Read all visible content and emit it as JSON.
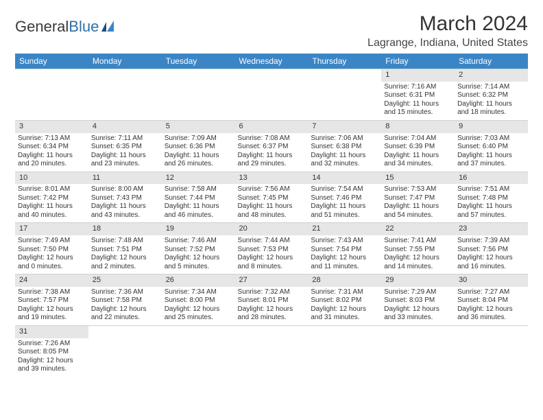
{
  "logo": {
    "text1": "General",
    "text2": "Blue"
  },
  "title": "March 2024",
  "location": "Lagrange, Indiana, United States",
  "weekdays": [
    "Sunday",
    "Monday",
    "Tuesday",
    "Wednesday",
    "Thursday",
    "Friday",
    "Saturday"
  ],
  "colors": {
    "header_bg": "#3a85c6",
    "header_text": "#ffffff",
    "daynum_bg": "#e6e6e6",
    "row_divider": "#3a85c6",
    "logo_dark": "#3a3a3a",
    "logo_blue": "#2f6fa8"
  },
  "weeks": [
    [
      null,
      null,
      null,
      null,
      null,
      {
        "n": "1",
        "sr": "Sunrise: 7:16 AM",
        "ss": "Sunset: 6:31 PM",
        "d1": "Daylight: 11 hours",
        "d2": "and 15 minutes."
      },
      {
        "n": "2",
        "sr": "Sunrise: 7:14 AM",
        "ss": "Sunset: 6:32 PM",
        "d1": "Daylight: 11 hours",
        "d2": "and 18 minutes."
      }
    ],
    [
      {
        "n": "3",
        "sr": "Sunrise: 7:13 AM",
        "ss": "Sunset: 6:34 PM",
        "d1": "Daylight: 11 hours",
        "d2": "and 20 minutes."
      },
      {
        "n": "4",
        "sr": "Sunrise: 7:11 AM",
        "ss": "Sunset: 6:35 PM",
        "d1": "Daylight: 11 hours",
        "d2": "and 23 minutes."
      },
      {
        "n": "5",
        "sr": "Sunrise: 7:09 AM",
        "ss": "Sunset: 6:36 PM",
        "d1": "Daylight: 11 hours",
        "d2": "and 26 minutes."
      },
      {
        "n": "6",
        "sr": "Sunrise: 7:08 AM",
        "ss": "Sunset: 6:37 PM",
        "d1": "Daylight: 11 hours",
        "d2": "and 29 minutes."
      },
      {
        "n": "7",
        "sr": "Sunrise: 7:06 AM",
        "ss": "Sunset: 6:38 PM",
        "d1": "Daylight: 11 hours",
        "d2": "and 32 minutes."
      },
      {
        "n": "8",
        "sr": "Sunrise: 7:04 AM",
        "ss": "Sunset: 6:39 PM",
        "d1": "Daylight: 11 hours",
        "d2": "and 34 minutes."
      },
      {
        "n": "9",
        "sr": "Sunrise: 7:03 AM",
        "ss": "Sunset: 6:40 PM",
        "d1": "Daylight: 11 hours",
        "d2": "and 37 minutes."
      }
    ],
    [
      {
        "n": "10",
        "sr": "Sunrise: 8:01 AM",
        "ss": "Sunset: 7:42 PM",
        "d1": "Daylight: 11 hours",
        "d2": "and 40 minutes."
      },
      {
        "n": "11",
        "sr": "Sunrise: 8:00 AM",
        "ss": "Sunset: 7:43 PM",
        "d1": "Daylight: 11 hours",
        "d2": "and 43 minutes."
      },
      {
        "n": "12",
        "sr": "Sunrise: 7:58 AM",
        "ss": "Sunset: 7:44 PM",
        "d1": "Daylight: 11 hours",
        "d2": "and 46 minutes."
      },
      {
        "n": "13",
        "sr": "Sunrise: 7:56 AM",
        "ss": "Sunset: 7:45 PM",
        "d1": "Daylight: 11 hours",
        "d2": "and 48 minutes."
      },
      {
        "n": "14",
        "sr": "Sunrise: 7:54 AM",
        "ss": "Sunset: 7:46 PM",
        "d1": "Daylight: 11 hours",
        "d2": "and 51 minutes."
      },
      {
        "n": "15",
        "sr": "Sunrise: 7:53 AM",
        "ss": "Sunset: 7:47 PM",
        "d1": "Daylight: 11 hours",
        "d2": "and 54 minutes."
      },
      {
        "n": "16",
        "sr": "Sunrise: 7:51 AM",
        "ss": "Sunset: 7:48 PM",
        "d1": "Daylight: 11 hours",
        "d2": "and 57 minutes."
      }
    ],
    [
      {
        "n": "17",
        "sr": "Sunrise: 7:49 AM",
        "ss": "Sunset: 7:50 PM",
        "d1": "Daylight: 12 hours",
        "d2": "and 0 minutes."
      },
      {
        "n": "18",
        "sr": "Sunrise: 7:48 AM",
        "ss": "Sunset: 7:51 PM",
        "d1": "Daylight: 12 hours",
        "d2": "and 2 minutes."
      },
      {
        "n": "19",
        "sr": "Sunrise: 7:46 AM",
        "ss": "Sunset: 7:52 PM",
        "d1": "Daylight: 12 hours",
        "d2": "and 5 minutes."
      },
      {
        "n": "20",
        "sr": "Sunrise: 7:44 AM",
        "ss": "Sunset: 7:53 PM",
        "d1": "Daylight: 12 hours",
        "d2": "and 8 minutes."
      },
      {
        "n": "21",
        "sr": "Sunrise: 7:43 AM",
        "ss": "Sunset: 7:54 PM",
        "d1": "Daylight: 12 hours",
        "d2": "and 11 minutes."
      },
      {
        "n": "22",
        "sr": "Sunrise: 7:41 AM",
        "ss": "Sunset: 7:55 PM",
        "d1": "Daylight: 12 hours",
        "d2": "and 14 minutes."
      },
      {
        "n": "23",
        "sr": "Sunrise: 7:39 AM",
        "ss": "Sunset: 7:56 PM",
        "d1": "Daylight: 12 hours",
        "d2": "and 16 minutes."
      }
    ],
    [
      {
        "n": "24",
        "sr": "Sunrise: 7:38 AM",
        "ss": "Sunset: 7:57 PM",
        "d1": "Daylight: 12 hours",
        "d2": "and 19 minutes."
      },
      {
        "n": "25",
        "sr": "Sunrise: 7:36 AM",
        "ss": "Sunset: 7:58 PM",
        "d1": "Daylight: 12 hours",
        "d2": "and 22 minutes."
      },
      {
        "n": "26",
        "sr": "Sunrise: 7:34 AM",
        "ss": "Sunset: 8:00 PM",
        "d1": "Daylight: 12 hours",
        "d2": "and 25 minutes."
      },
      {
        "n": "27",
        "sr": "Sunrise: 7:32 AM",
        "ss": "Sunset: 8:01 PM",
        "d1": "Daylight: 12 hours",
        "d2": "and 28 minutes."
      },
      {
        "n": "28",
        "sr": "Sunrise: 7:31 AM",
        "ss": "Sunset: 8:02 PM",
        "d1": "Daylight: 12 hours",
        "d2": "and 31 minutes."
      },
      {
        "n": "29",
        "sr": "Sunrise: 7:29 AM",
        "ss": "Sunset: 8:03 PM",
        "d1": "Daylight: 12 hours",
        "d2": "and 33 minutes."
      },
      {
        "n": "30",
        "sr": "Sunrise: 7:27 AM",
        "ss": "Sunset: 8:04 PM",
        "d1": "Daylight: 12 hours",
        "d2": "and 36 minutes."
      }
    ],
    [
      {
        "n": "31",
        "sr": "Sunrise: 7:26 AM",
        "ss": "Sunset: 8:05 PM",
        "d1": "Daylight: 12 hours",
        "d2": "and 39 minutes."
      },
      null,
      null,
      null,
      null,
      null,
      null
    ]
  ]
}
